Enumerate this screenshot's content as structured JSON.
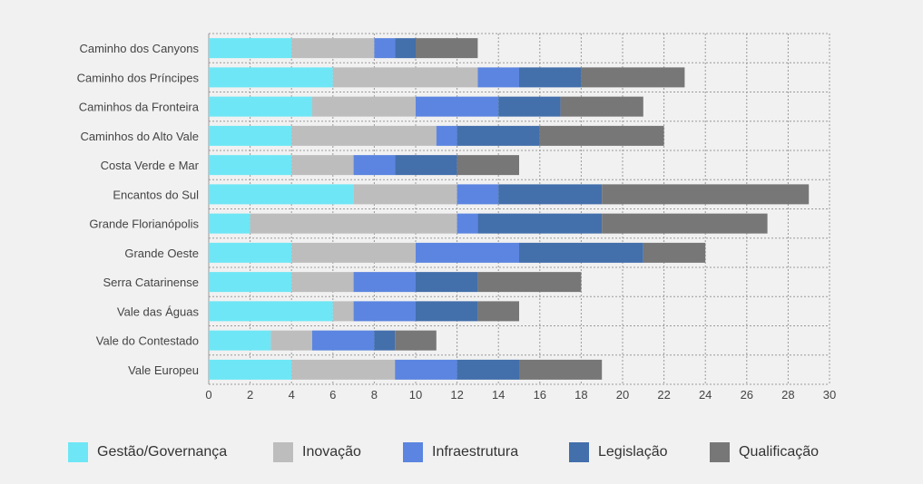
{
  "chart_data": {
    "type": "bar",
    "orientation": "horizontal",
    "stacked": true,
    "title": "",
    "xlabel": "",
    "ylabel": "",
    "xlim": [
      0,
      30
    ],
    "x_ticks": [
      "0",
      "2",
      "4",
      "6",
      "8",
      "10",
      "12",
      "14",
      "16",
      "18",
      "20",
      "22",
      "24",
      "26",
      "28",
      "30"
    ],
    "grid": true,
    "legend_position": "bottom",
    "categories": [
      "Caminho dos Canyons",
      "Caminho dos Príncipes",
      "Caminhos da Fronteira",
      "Caminhos do Alto Vale",
      "Costa Verde e Mar",
      "Encantos do Sul",
      "Grande Florianópolis",
      "Grande Oeste",
      "Serra Catarinense",
      "Vale das Águas",
      "Vale do Contestado",
      "Vale Europeu"
    ],
    "series": [
      {
        "name": "Gestão/Governança",
        "color": "#6ee6f5",
        "values": [
          4,
          6,
          5,
          4,
          4,
          7,
          2,
          4,
          4,
          6,
          3,
          4
        ]
      },
      {
        "name": "Inovação",
        "color": "#bdbdbd",
        "values": [
          4,
          7,
          5,
          7,
          3,
          5,
          10,
          6,
          3,
          1,
          2,
          5
        ]
      },
      {
        "name": "Infraestrutura",
        "color": "#5b85e0",
        "values": [
          1,
          2,
          4,
          1,
          2,
          2,
          1,
          5,
          3,
          3,
          3,
          3
        ]
      },
      {
        "name": "Legislação",
        "color": "#436fab",
        "values": [
          1,
          3,
          3,
          4,
          3,
          5,
          6,
          6,
          3,
          3,
          1,
          3
        ]
      },
      {
        "name": "Qualificação",
        "color": "#777777",
        "values": [
          3,
          5,
          4,
          6,
          3,
          10,
          8,
          3,
          5,
          2,
          2,
          4
        ]
      }
    ]
  }
}
